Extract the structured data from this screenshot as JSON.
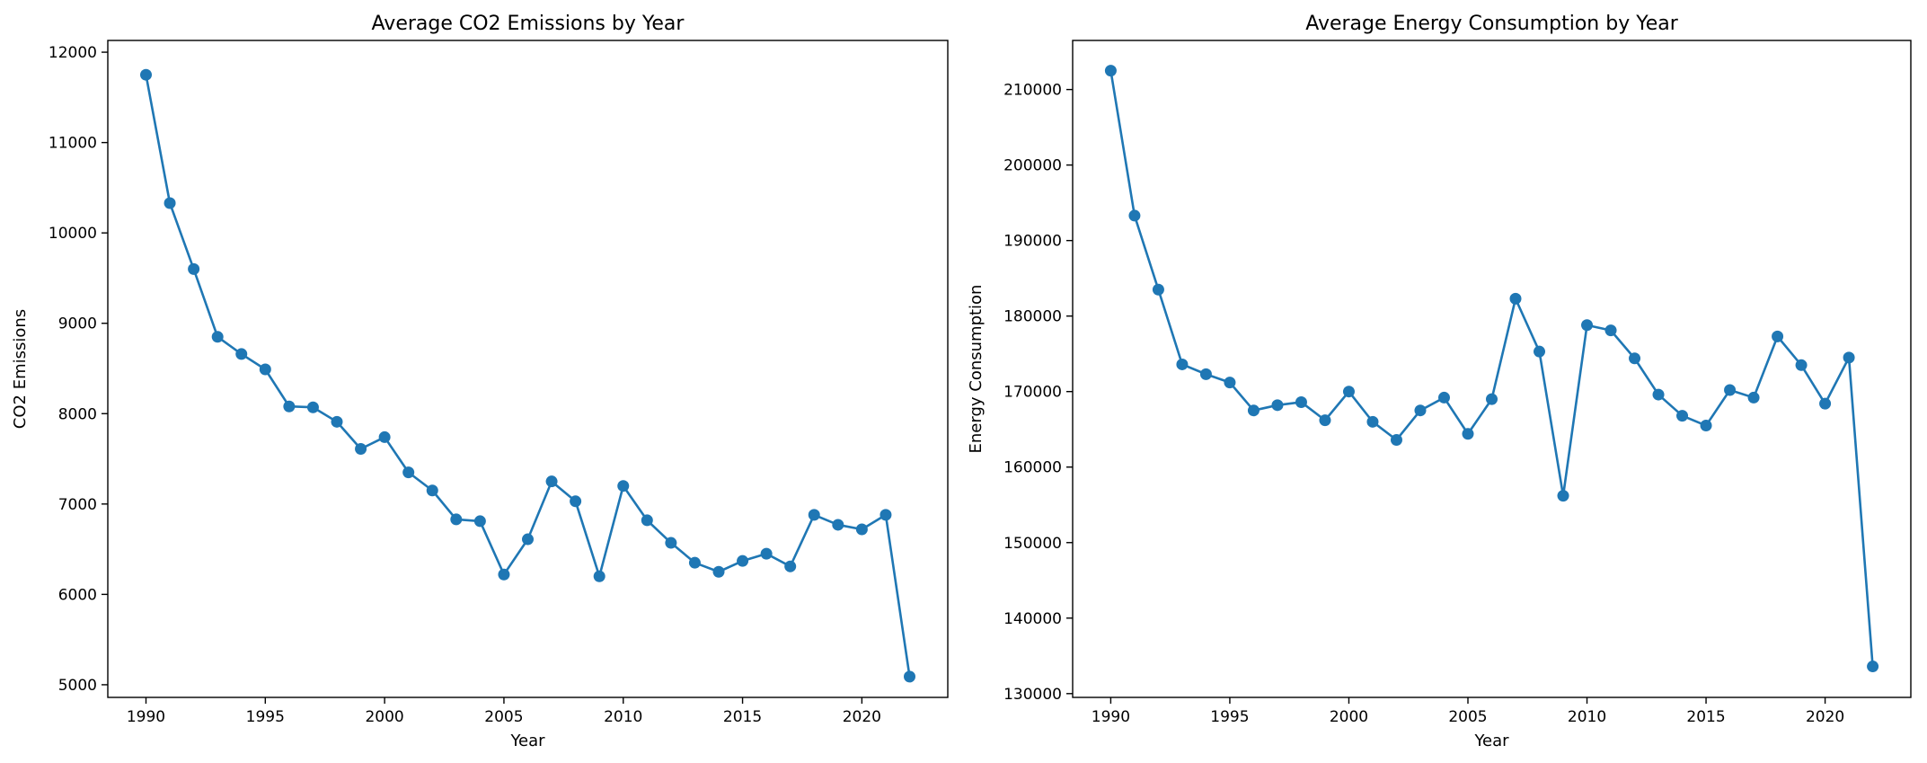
{
  "chart_data": [
    {
      "type": "line",
      "title": "Average CO2 Emissions by Year",
      "xlabel": "Year",
      "ylabel": "CO2 Emissions",
      "xlim": [
        1988.4,
        2023.6
      ],
      "ylim": [
        4860,
        12130
      ],
      "xticks": [
        1990,
        1995,
        2000,
        2005,
        2010,
        2015,
        2020
      ],
      "yticks": [
        5000,
        6000,
        7000,
        8000,
        9000,
        10000,
        11000,
        12000
      ],
      "grid": false,
      "color": "#1f77b4",
      "x": [
        1990,
        1991,
        1992,
        1993,
        1994,
        1995,
        1996,
        1997,
        1998,
        1999,
        2000,
        2001,
        2002,
        2003,
        2004,
        2005,
        2006,
        2007,
        2008,
        2009,
        2010,
        2011,
        2012,
        2013,
        2014,
        2015,
        2016,
        2017,
        2018,
        2019,
        2020,
        2021,
        2022
      ],
      "y": [
        11750,
        10330,
        9600,
        8850,
        8660,
        8490,
        8080,
        8070,
        7910,
        7610,
        7740,
        7350,
        7150,
        6830,
        6810,
        6220,
        6610,
        7250,
        7030,
        6200,
        7200,
        6820,
        6570,
        6350,
        6250,
        6370,
        6450,
        6310,
        6880,
        6770,
        6720,
        6880,
        5090
      ]
    },
    {
      "type": "line",
      "title": "Average Energy Consumption by Year",
      "xlabel": "Year",
      "ylabel": "Energy Consumption",
      "xlim": [
        1988.4,
        2023.6
      ],
      "ylim": [
        129500,
        216500
      ],
      "xticks": [
        1990,
        1995,
        2000,
        2005,
        2010,
        2015,
        2020
      ],
      "yticks": [
        130000,
        140000,
        150000,
        160000,
        170000,
        180000,
        190000,
        200000,
        210000
      ],
      "grid": false,
      "color": "#1f77b4",
      "x": [
        1990,
        1991,
        1992,
        1993,
        1994,
        1995,
        1996,
        1997,
        1998,
        1999,
        2000,
        2001,
        2002,
        2003,
        2004,
        2005,
        2006,
        2007,
        2008,
        2009,
        2010,
        2011,
        2012,
        2013,
        2014,
        2015,
        2016,
        2017,
        2018,
        2019,
        2020,
        2021,
        2022
      ],
      "y": [
        212500,
        193300,
        183500,
        173600,
        172300,
        171200,
        167500,
        168200,
        168600,
        166200,
        170000,
        166000,
        163600,
        167500,
        169200,
        164400,
        169000,
        182300,
        175300,
        156200,
        178800,
        178100,
        174400,
        169600,
        166800,
        165500,
        170200,
        169200,
        177300,
        173500,
        168400,
        174500,
        133600
      ]
    }
  ]
}
